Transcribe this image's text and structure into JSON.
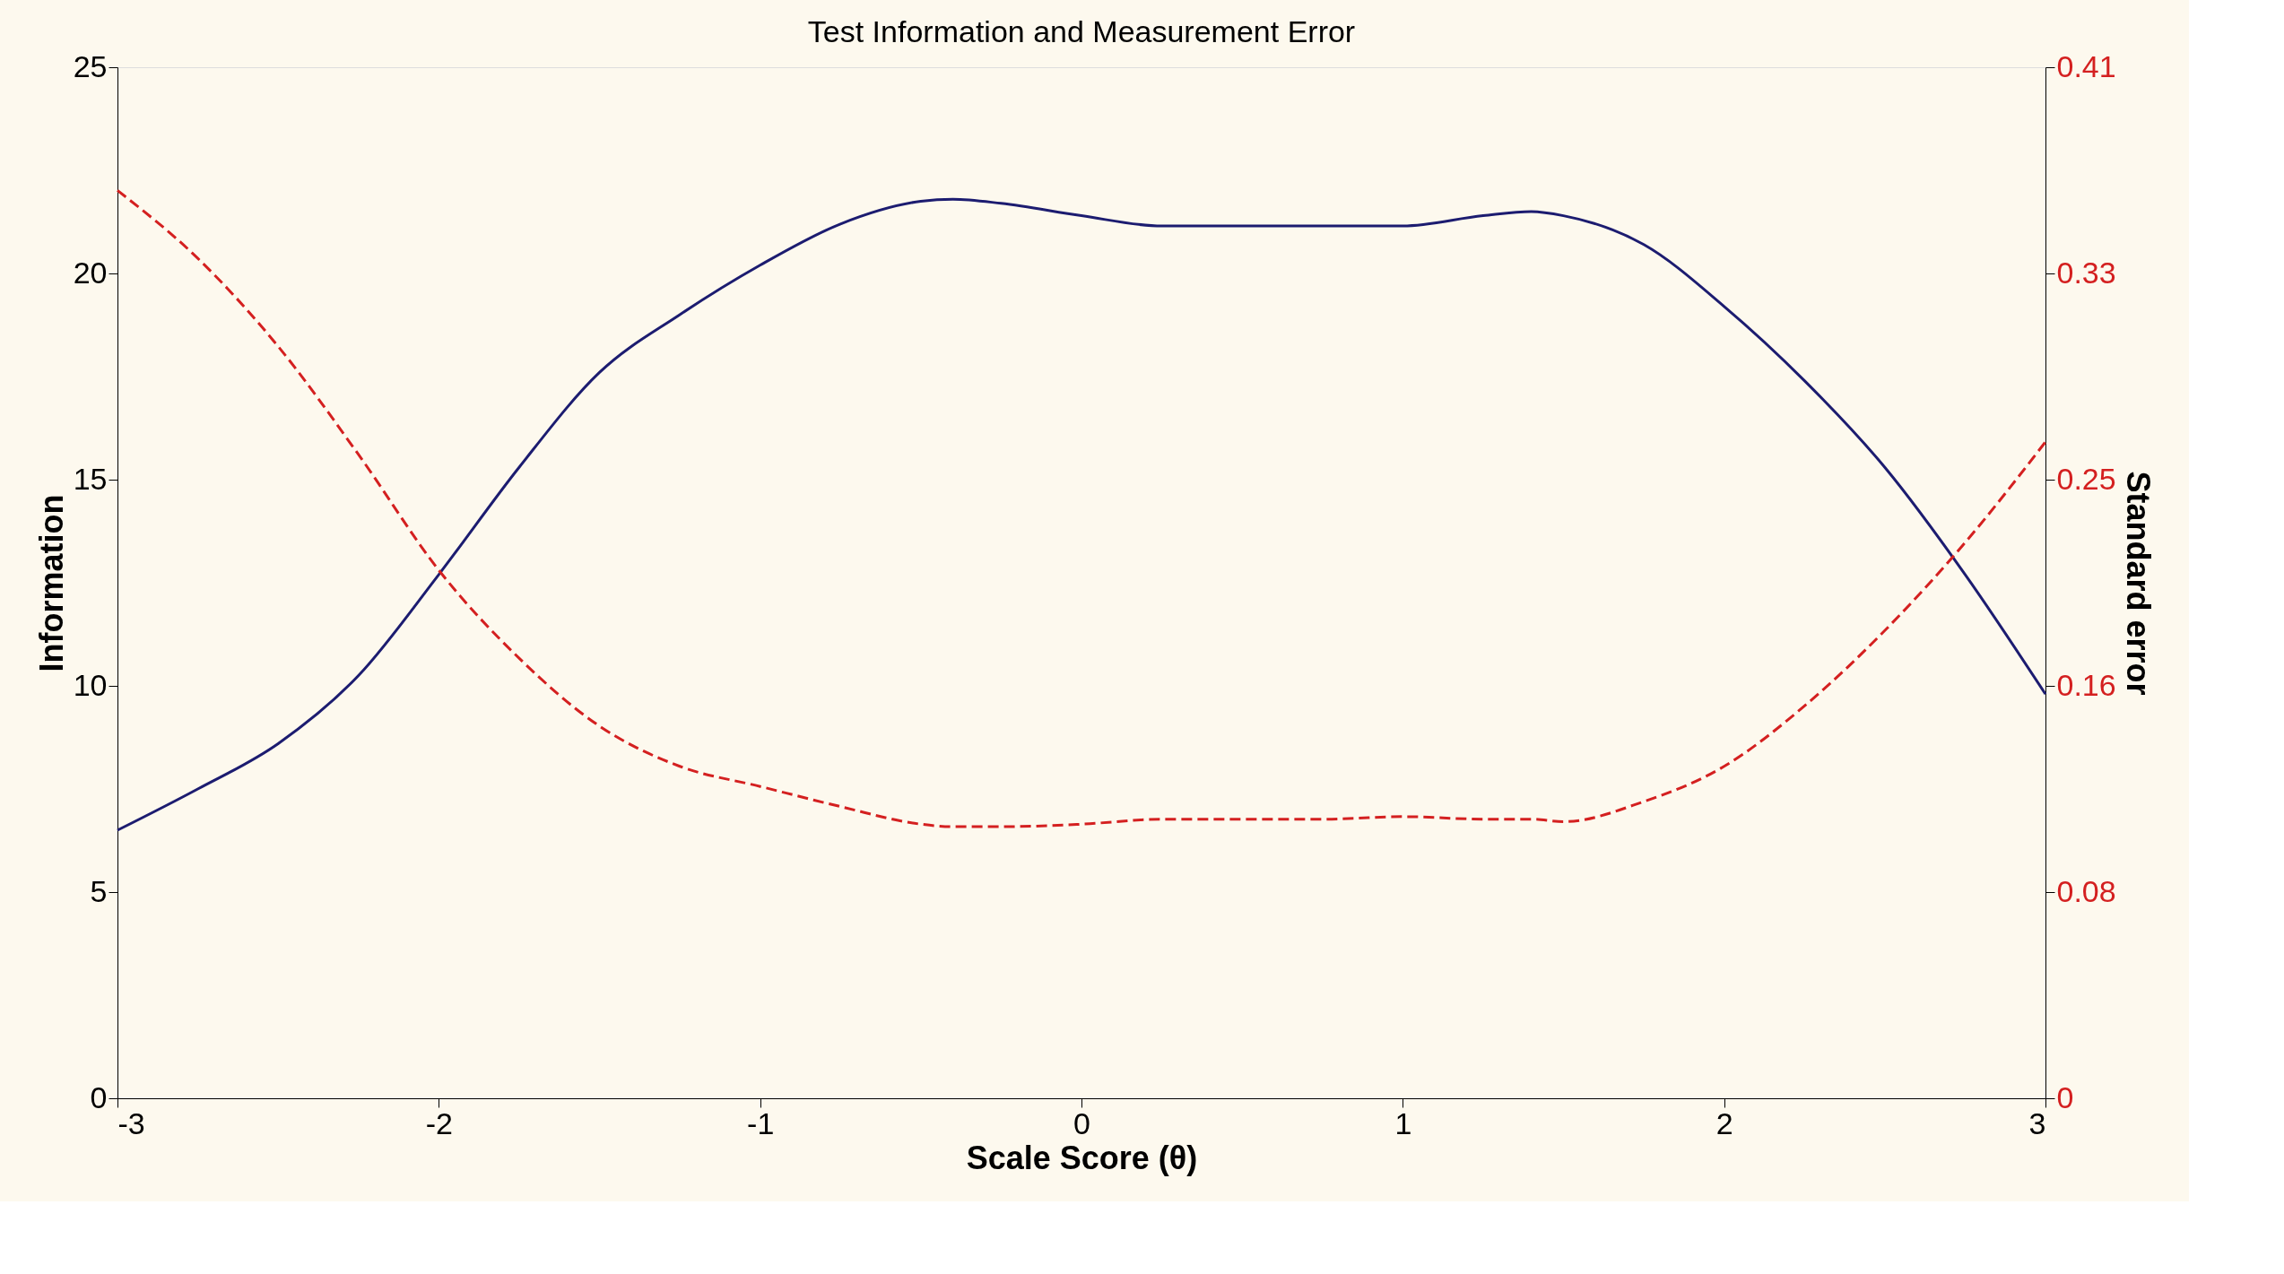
{
  "chart_data": {
    "type": "line",
    "title": "Test Information and Measurement Error",
    "xlabel": "Scale Score (θ)",
    "ylabel": "Information",
    "y2label": "Standard error",
    "x": [
      -3,
      -2.75,
      -2.5,
      -2.25,
      -2,
      -1.75,
      -1.5,
      -1.25,
      -1,
      -0.75,
      -0.5,
      -0.4,
      -0.25,
      0,
      0.25,
      0.5,
      0.75,
      1,
      1.25,
      1.4,
      1.5,
      1.75,
      2,
      2.25,
      2.5,
      2.75,
      3
    ],
    "series": [
      {
        "color": "#1c1c70",
        "line_style": "solid",
        "values": [
          6.5,
          7.5,
          8.6,
          10.25,
          12.7,
          15.3,
          17.6,
          19.0,
          20.2,
          21.2,
          21.75,
          21.8,
          21.7,
          21.4,
          21.15,
          21.15,
          21.15,
          21.15,
          21.4,
          21.5,
          21.4,
          20.7,
          19.2,
          17.4,
          15.3,
          12.7,
          9.8
        ]
      },
      {
        "color": "#d42020",
        "line_style": "dashed",
        "axis": "y2",
        "values": [
          0.361,
          0.334,
          0.299,
          0.256,
          0.21,
          0.175,
          0.148,
          0.132,
          0.124,
          0.116,
          0.109,
          0.108,
          0.108,
          0.109,
          0.111,
          0.111,
          0.111,
          0.112,
          0.111,
          0.111,
          0.11,
          0.118,
          0.132,
          0.156,
          0.186,
          0.221,
          0.261
        ]
      }
    ],
    "xlim": [
      -3,
      3
    ],
    "xticks": [
      -3,
      -2,
      -1,
      0,
      1,
      2,
      3
    ],
    "ylim": [
      0,
      25
    ],
    "yticks": [
      0,
      5,
      10,
      15,
      20,
      25
    ],
    "y2lim": [
      0,
      0.41
    ],
    "y2ticks": [
      0,
      {
        "value": 0.082,
        "label": "0.08"
      },
      {
        "value": 0.164,
        "label": "0.16"
      },
      {
        "value": 0.246,
        "label": "0.25"
      },
      {
        "value": 0.328,
        "label": "0.33"
      },
      0.41
    ],
    "grid": false,
    "marker": "none"
  }
}
